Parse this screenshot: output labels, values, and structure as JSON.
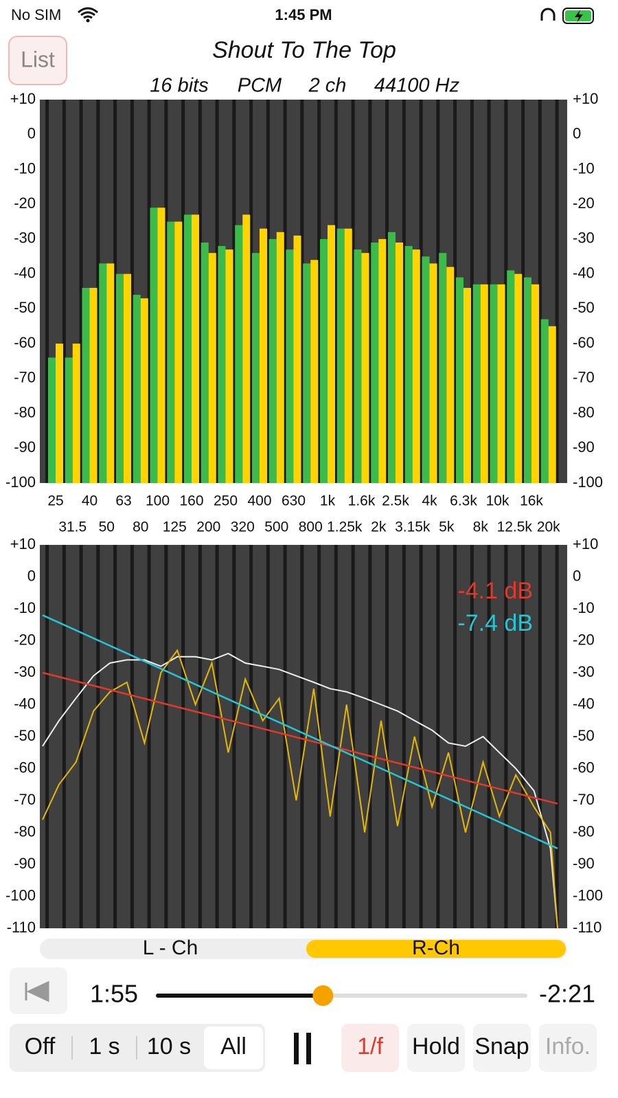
{
  "status": {
    "carrier": "No SIM",
    "time": "1:45 PM"
  },
  "header": {
    "list_button": "List",
    "title": "Shout To The Top",
    "format": [
      "16 bits",
      "PCM",
      "2 ch",
      "44100 Hz"
    ]
  },
  "chart_data": [
    {
      "type": "bar",
      "categories": [
        "25",
        "31.5",
        "40",
        "50",
        "63",
        "80",
        "100",
        "125",
        "160",
        "200",
        "250",
        "320",
        "400",
        "500",
        "630",
        "800",
        "1k",
        "1.25k",
        "1.6k",
        "2k",
        "2.5k",
        "3.15k",
        "4k",
        "5k",
        "6.3k",
        "8k",
        "10k",
        "12.5k",
        "16k",
        "20k"
      ],
      "series": [
        {
          "color": "#3dbb4a",
          "values": [
            -64,
            -64,
            -44,
            -37,
            -40,
            -46,
            -21,
            -25,
            -23,
            -31,
            -32,
            -26,
            -34,
            -30,
            -33,
            -37,
            -30,
            -27,
            -33,
            -31,
            -28,
            -32,
            -35,
            -34,
            -41,
            -43,
            -43,
            -39,
            -41,
            -53
          ]
        },
        {
          "color": "#ffd400",
          "values": [
            -60,
            -60,
            -44,
            -37,
            -40,
            -47,
            -21,
            -25,
            -23,
            -34,
            -33,
            -23,
            -27,
            -28,
            -29,
            -36,
            -26,
            -27,
            -34,
            -30,
            -31,
            -33,
            -37,
            -38,
            -44,
            -43,
            -43,
            -40,
            -43,
            -55
          ]
        }
      ],
      "ylim": [
        -100,
        10
      ],
      "yticks": [
        {
          "value": 10,
          "label": "+10"
        },
        0,
        -10,
        -20,
        -30,
        -40,
        -50,
        -60,
        -70,
        -80,
        -90,
        -100
      ]
    },
    {
      "type": "line",
      "log_x": true,
      "xlim": [
        20,
        22050
      ],
      "ylim": [
        -110,
        10
      ],
      "yticks": [
        {
          "value": 10,
          "label": "+10"
        },
        0,
        -10,
        -20,
        -30,
        -40,
        -50,
        -60,
        -70,
        -80,
        -90,
        -100,
        -110
      ],
      "series": [
        {
          "color": "#eeeeee",
          "x": [
            20,
            25,
            31.5,
            40,
            50,
            63,
            80,
            100,
            125,
            160,
            200,
            250,
            315,
            400,
            500,
            630,
            800,
            1000,
            1250,
            1600,
            2000,
            2500,
            3150,
            4000,
            5000,
            6300,
            8000,
            10000,
            12500,
            16000,
            20000,
            22050
          ],
          "values": [
            -53,
            -45,
            -38,
            -31,
            -27,
            -26,
            -26,
            -28,
            -25,
            -25,
            -26,
            -24,
            -27,
            -28,
            -29,
            -31,
            -33,
            -35,
            -36,
            -38,
            -40,
            -42,
            -45,
            -48,
            -52,
            -53,
            -50,
            -55,
            -60,
            -67,
            -85,
            -110
          ]
        },
        {
          "color": "#e6b800",
          "x": [
            20,
            25,
            31.5,
            40,
            50,
            63,
            80,
            100,
            125,
            160,
            200,
            250,
            315,
            400,
            500,
            630,
            800,
            1000,
            1250,
            1600,
            2000,
            2500,
            3150,
            4000,
            5000,
            6300,
            8000,
            10000,
            12500,
            16000,
            20000,
            22050
          ],
          "values": [
            -76,
            -65,
            -58,
            -42,
            -36,
            -33,
            -52,
            -30,
            -23,
            -40,
            -27,
            -55,
            -32,
            -45,
            -38,
            -70,
            -35,
            -75,
            -40,
            -80,
            -45,
            -78,
            -50,
            -72,
            -55,
            -80,
            -58,
            -75,
            -62,
            -72,
            -80,
            -110
          ]
        },
        {
          "color": "#e03a2a",
          "x": [
            20,
            22050
          ],
          "values": [
            -30,
            -71
          ]
        },
        {
          "color": "#27c6d6",
          "x": [
            20,
            22050
          ],
          "values": [
            -12,
            -85
          ]
        }
      ],
      "annotations": [
        {
          "text": "-4.1 dB",
          "color": "#e03a2a"
        },
        {
          "text": "-7.4 dB",
          "color": "#27c6d6"
        }
      ]
    }
  ],
  "channels": {
    "left": "L - Ch",
    "right": "R-Ch",
    "selected": "right"
  },
  "player": {
    "elapsed": "1:55",
    "remaining": "-2:21"
  },
  "controls": {
    "hold_times": [
      "Off",
      "1 s",
      "10 s",
      "All"
    ],
    "selected_hold": 3,
    "buttons": [
      "1/f",
      "Hold",
      "Snap",
      "Info."
    ]
  }
}
